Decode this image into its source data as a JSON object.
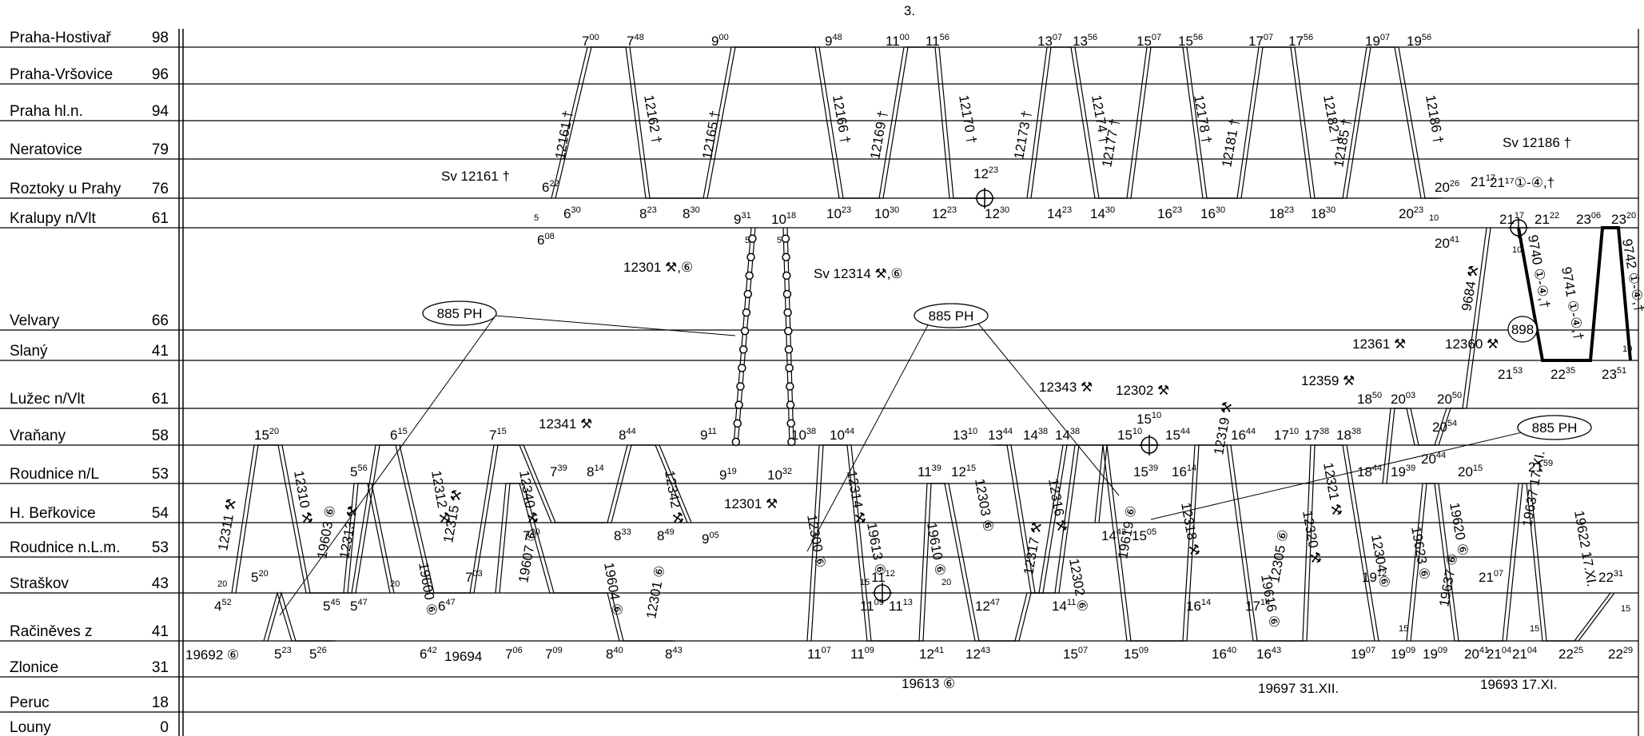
{
  "page_label": "3.",
  "stations": [
    {
      "name": "Praha-Hostivař",
      "km": "98"
    },
    {
      "name": "Praha-Vršovice",
      "km": "96"
    },
    {
      "name": "Praha hl.n.",
      "km": "94"
    },
    {
      "name": "Neratovice",
      "km": "79"
    },
    {
      "name": "Roztoky u Prahy",
      "km": "76"
    },
    {
      "name": "Kralupy n/Vlt",
      "km": "61"
    },
    {
      "name": "Velvary",
      "km": "66"
    },
    {
      "name": "Slaný",
      "km": "41"
    },
    {
      "name": "Lužec n/Vlt",
      "km": "61"
    },
    {
      "name": "Vraňany",
      "km": "58"
    },
    {
      "name": "Roudnice n/L",
      "km": "53"
    },
    {
      "name": "H. Beřkovice",
      "km": "54"
    },
    {
      "name": "Roudnice n.L.m.",
      "km": "53"
    },
    {
      "name": "Straškov",
      "km": "43"
    },
    {
      "name": "Račiněves z",
      "km": "41"
    },
    {
      "name": "Zlonice",
      "km": "31"
    },
    {
      "name": "Peruc",
      "km": "18"
    },
    {
      "name": "Louny",
      "km": "0"
    }
  ],
  "hostivar_times": [
    {
      "h": "7",
      "m": "00"
    },
    {
      "h": "7",
      "m": "48"
    },
    {
      "h": "9",
      "m": "00"
    },
    {
      "h": "9",
      "m": "48"
    },
    {
      "h": "11",
      "m": "00"
    },
    {
      "h": "11",
      "m": "56"
    },
    {
      "h": "13",
      "m": "07"
    },
    {
      "h": "13",
      "m": "56"
    },
    {
      "h": "15",
      "m": "07"
    },
    {
      "h": "15",
      "m": "56"
    },
    {
      "h": "17",
      "m": "07"
    },
    {
      "h": "17",
      "m": "56"
    },
    {
      "h": "19",
      "m": "07"
    },
    {
      "h": "19",
      "m": "56"
    }
  ],
  "kralupy_times": [
    {
      "h": "6",
      "m": "30"
    },
    {
      "h": "8",
      "m": "23"
    },
    {
      "h": "8",
      "m": "30"
    },
    {
      "h": "10",
      "m": "23"
    },
    {
      "h": "10",
      "m": "30"
    },
    {
      "h": "12",
      "m": "23"
    },
    {
      "h": "12",
      "m": "30"
    },
    {
      "h": "14",
      "m": "23"
    },
    {
      "h": "14",
      "m": "30"
    },
    {
      "h": "16",
      "m": "23"
    },
    {
      "h": "16",
      "m": "30"
    },
    {
      "h": "18",
      "m": "23"
    },
    {
      "h": "18",
      "m": "30"
    },
    {
      "h": "20",
      "m": "23"
    }
  ],
  "zlonice_times": [
    {
      "h": "5",
      "m": "23"
    },
    {
      "h": "5",
      "m": "26"
    },
    {
      "h": "6",
      "m": "42"
    },
    {
      "h": "7",
      "m": "06"
    },
    {
      "h": "7",
      "m": "09"
    },
    {
      "h": "8",
      "m": "40"
    },
    {
      "h": "8",
      "m": "43"
    },
    {
      "h": "11",
      "m": "07"
    },
    {
      "h": "11",
      "m": "09"
    },
    {
      "h": "12",
      "m": "41"
    },
    {
      "h": "12",
      "m": "43"
    },
    {
      "h": "15",
      "m": "07"
    },
    {
      "h": "15",
      "m": "09"
    },
    {
      "h": "16",
      "m": "40"
    },
    {
      "h": "16",
      "m": "43"
    },
    {
      "h": "19",
      "m": "07"
    },
    {
      "h": "19",
      "m": "09"
    },
    {
      "h": "19",
      "m": "09"
    },
    {
      "h": "20",
      "m": "41"
    },
    {
      "h": "21",
      "m": "04"
    },
    {
      "h": "21",
      "m": "04"
    },
    {
      "h": "22",
      "m": "25"
    },
    {
      "h": "22",
      "m": "29"
    }
  ],
  "other_times": [
    {
      "h": "6",
      "m": "22"
    },
    {
      "h": "12",
      "m": "23"
    },
    {
      "h": "20",
      "m": "26"
    },
    {
      "h": "21",
      "m": "17"
    },
    {
      "h": "6",
      "m": "08"
    },
    {
      "h": "9",
      "m": "31"
    },
    {
      "h": "10",
      "m": "18"
    },
    {
      "h": "21",
      "m": "17"
    },
    {
      "h": "21",
      "m": "22"
    },
    {
      "h": "23",
      "m": "06"
    },
    {
      "h": "23",
      "m": "20"
    },
    {
      "h": "20",
      "m": "41"
    },
    {
      "h": "21",
      "m": "53"
    },
    {
      "h": "22",
      "m": "35"
    },
    {
      "h": "23",
      "m": "51"
    },
    {
      "h": "18",
      "m": "50"
    },
    {
      "h": "20",
      "m": "03"
    },
    {
      "h": "20",
      "m": "50"
    },
    {
      "h": "20",
      "m": "54"
    },
    {
      "h": "9",
      "m": "11"
    },
    {
      "h": "10",
      "m": "38"
    },
    {
      "h": "10",
      "m": "44"
    },
    {
      "h": "15",
      "m": "10"
    },
    {
      "h": "15",
      "m": "10"
    },
    {
      "h": "15",
      "m": "44"
    },
    {
      "h": "15",
      "m": "20"
    },
    {
      "h": "6",
      "m": "15"
    },
    {
      "h": "7",
      "m": "15"
    },
    {
      "h": "8",
      "m": "44"
    },
    {
      "h": "13",
      "m": "10"
    },
    {
      "h": "13",
      "m": "44"
    },
    {
      "h": "14",
      "m": "38"
    },
    {
      "h": "14",
      "m": "38"
    },
    {
      "h": "16",
      "m": "44"
    },
    {
      "h": "17",
      "m": "10"
    },
    {
      "h": "17",
      "m": "38"
    },
    {
      "h": "18",
      "m": "38"
    },
    {
      "h": "9",
      "m": "19"
    },
    {
      "h": "10",
      "m": "32"
    },
    {
      "h": "5",
      "m": "56"
    },
    {
      "h": "7",
      "m": "39"
    },
    {
      "h": "8",
      "m": "14"
    },
    {
      "h": "11",
      "m": "39"
    },
    {
      "h": "12",
      "m": "15"
    },
    {
      "h": "15",
      "m": "39"
    },
    {
      "h": "16",
      "m": "14"
    },
    {
      "h": "18",
      "m": "44"
    },
    {
      "h": "20",
      "m": "44"
    },
    {
      "h": "19",
      "m": "39"
    },
    {
      "h": "20",
      "m": "15"
    },
    {
      "h": "21",
      "m": "59"
    },
    {
      "h": "7",
      "m": "20"
    },
    {
      "h": "8",
      "m": "33"
    },
    {
      "h": "8",
      "m": "49"
    },
    {
      "h": "9",
      "m": "05"
    },
    {
      "h": "14",
      "m": "43"
    },
    {
      "h": "15",
      "m": "05"
    },
    {
      "h": "5",
      "m": "20"
    },
    {
      "h": "7",
      "m": "03"
    },
    {
      "h": "11",
      "m": "12"
    },
    {
      "h": "19",
      "m": "12"
    },
    {
      "h": "21",
      "m": "07"
    },
    {
      "h": "22",
      "m": "31"
    },
    {
      "h": "4",
      "m": "52"
    },
    {
      "h": "5",
      "m": "45"
    },
    {
      "h": "5",
      "m": "47"
    },
    {
      "h": "6",
      "m": "47"
    },
    {
      "h": "11",
      "m": "09"
    },
    {
      "h": "11",
      "m": "13"
    },
    {
      "h": "12",
      "m": "47"
    },
    {
      "h": "14",
      "m": "11"
    },
    {
      "h": "16",
      "m": "14"
    },
    {
      "h": "17",
      "m": "14"
    }
  ],
  "train_labels": [
    "12161 †",
    "12162 †",
    "12165 †",
    "12166 †",
    "12169 †",
    "12170 †",
    "12173 †",
    "12174 †",
    "12177 †",
    "12178 †",
    "12181 †",
    "12182 †",
    "12185 †",
    "12186 †",
    "Sv 12161 †",
    "Sv 12186 †",
    "21¹⁷①-④,†",
    "12301 ⚒,⑥",
    "Sv 12314 ⚒,⑥",
    "885 PH",
    "885 PH",
    "885 PH",
    "898",
    "9684 ⚒",
    "9740 ①-④,†",
    "9741 ①-④,†",
    "9742 ①-④,†",
    "12361 ⚒",
    "12360 ⚒",
    "12359 ⚒",
    "12343 ⚒",
    "12302 ⚒",
    "12341 ⚒",
    "12301 ⚒",
    "12311 ⚒",
    "12310 ⚒",
    "19603 ⑥",
    "12313 ⚒",
    "12312 ⚒",
    "12315 ⚒",
    "19600 ⑥",
    "12340 ⚒",
    "12342 ⚒",
    "19607 ⑥",
    "19604 ⑥",
    "12301 ⑥",
    "12300 ⑥",
    "12314 ⚒",
    "19613 ⑥",
    "19610 ⑥",
    "12303 ⑥",
    "12316 ⚒",
    "12317 ⚒",
    "12302 ⑥",
    "19619 ⑥",
    "12318 ⚒",
    "12319 ⚒",
    "19616 ⑥",
    "12305 ⑥",
    "12321 ⚒",
    "12320 ⚒",
    "12304 ⑥",
    "19623 ⑥",
    "19620 ⑥",
    "19637 17.XI.",
    "19622 17.XI.",
    "19637 ⑥",
    "19692 ⑥",
    "19694",
    "19613 ⑥",
    "19697 31.XII.",
    "19693 17.XI."
  ],
  "small_numbers": [
    "5",
    "10",
    "5",
    "5",
    "10",
    "10",
    "20",
    "20",
    "20",
    "15",
    "15",
    "15",
    "15"
  ]
}
